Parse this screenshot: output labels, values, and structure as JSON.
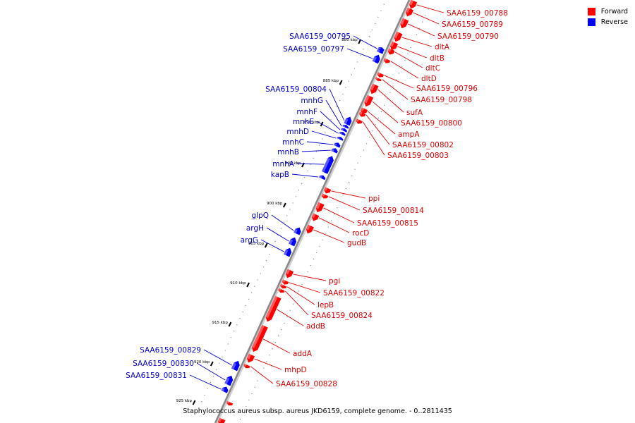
{
  "caption": "Staphylococcus aureus subsp. aureus JKD6159, complete genome. - 0..2811435",
  "legend": [
    {
      "label": "Forward",
      "color": "#ff0000"
    },
    {
      "label": "Reverse",
      "color": "#0000ff"
    }
  ],
  "colors": {
    "forward": "#ff0000",
    "reverse": "#0000ff",
    "forward_text": "#dd0000",
    "reverse_text": "#0000cc",
    "backbone": "#888888"
  },
  "scale_ticks": [
    "880 kbp",
    "885 kbp",
    "890 kbp",
    "895 kbp",
    "900 kbp",
    "905 kbp",
    "910 kbp",
    "915 kbp",
    "920 kbp",
    "925 kbp"
  ],
  "forward_genes": [
    "SAA6159_00788",
    "SAA6159_00789",
    "SAA6159_00790",
    "dltA",
    "dltB",
    "dltC",
    "dltD",
    "SAA6159_00796",
    "SAA6159_00798",
    "sufA",
    "SAA6159_00800",
    "ampA",
    "SAA6159_00802",
    "SAA6159_00803",
    "ppi",
    "SAA6159_00814",
    "SAA6159_00815",
    "rocD",
    "gudB",
    "pgi",
    "SAA6159_00822",
    "lepB",
    "SAA6159_00824",
    "addB",
    "addA",
    "mhpD",
    "SAA6159_00828"
  ],
  "reverse_genes": [
    "SAA6159_00795",
    "SAA6159_00797",
    "SAA6159_00804",
    "mnhG",
    "mnhF",
    "mnhE",
    "mnhD",
    "mnhC",
    "mnhB",
    "mnhA",
    "kapB",
    "glpQ",
    "argH",
    "argG",
    "SAA6159_00829",
    "SAA6159_00830",
    "SAA6159_00831"
  ]
}
